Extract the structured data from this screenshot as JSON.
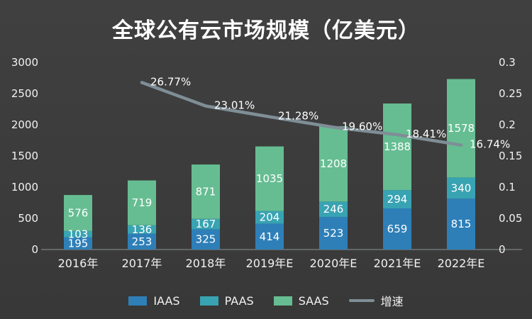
{
  "title": "全球公有云市场规模（亿美元）",
  "chart_data": {
    "type": "bar",
    "stacked": true,
    "title": "全球公有云市场规模（亿美元）",
    "categories": [
      "2016年",
      "2017年",
      "2018年",
      "2019年E",
      "2020年E",
      "2021年E",
      "2022年E"
    ],
    "series": [
      {
        "name": "IAAS",
        "key": "iaas",
        "type": "bar",
        "color": "#2e7fb8",
        "values": [
          195,
          253,
          325,
          414,
          523,
          659,
          815
        ]
      },
      {
        "name": "PAAS",
        "key": "paas",
        "type": "bar",
        "color": "#38a3b2",
        "values": [
          103,
          136,
          167,
          204,
          246,
          294,
          340
        ]
      },
      {
        "name": "SAAS",
        "key": "saas",
        "type": "bar",
        "color": "#66bd92",
        "values": [
          576,
          719,
          871,
          1035,
          1208,
          1388,
          1578
        ]
      },
      {
        "name": "增速",
        "key": "growth",
        "type": "line",
        "color": "#7f8e96",
        "values": [
          null,
          0.2677,
          0.2301,
          0.2128,
          0.196,
          0.1841,
          0.1674
        ],
        "labels": [
          "",
          "26.77%",
          "23.01%",
          "21.28%",
          "19.60%",
          "18.41%",
          "16.74%"
        ]
      }
    ],
    "left_axis": {
      "min": 0,
      "max": 3000,
      "step": 500,
      "ticks": [
        "0",
        "500",
        "1000",
        "1500",
        "2000",
        "2500",
        "3000"
      ]
    },
    "right_axis": {
      "min": 0,
      "max": 0.3,
      "step": 0.05,
      "ticks": [
        "0",
        "0.05",
        "0.1",
        "0.15",
        "0.2",
        "0.25",
        "0.3"
      ]
    },
    "legend_position": "bottom",
    "grid": false,
    "background": "#3a3a3a",
    "text_color": "#f2f2f2"
  }
}
